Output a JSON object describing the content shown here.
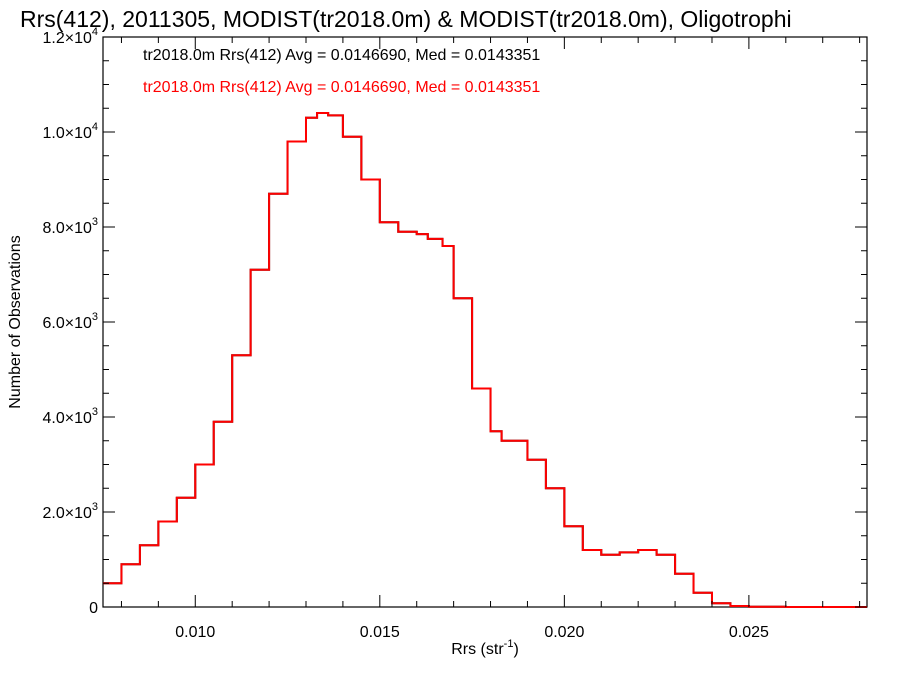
{
  "chart_data": {
    "type": "line",
    "title": "Rrs(412), 2011305, MODIST(tr2018.0m) & MODIST(tr2018.0m), Oligotrophi",
    "xlabel": "Rrs (str",
    "xlabel_sup": "-1",
    "xlabel_close": ")",
    "ylabel": "Number of Observations",
    "xlim": [
      0.0075,
      0.0282
    ],
    "ylim": [
      0,
      12000
    ],
    "x_ticks": [
      {
        "value": 0.01,
        "label": "0.010"
      },
      {
        "value": 0.015,
        "label": "0.015"
      },
      {
        "value": 0.02,
        "label": "0.020"
      },
      {
        "value": 0.025,
        "label": "0.025"
      }
    ],
    "y_ticks": [
      {
        "value": 0,
        "mant": "0",
        "exp": ""
      },
      {
        "value": 2000,
        "mant": "2.0×10",
        "exp": "3"
      },
      {
        "value": 4000,
        "mant": "4.0×10",
        "exp": "3"
      },
      {
        "value": 6000,
        "mant": "6.0×10",
        "exp": "3"
      },
      {
        "value": 8000,
        "mant": "8.0×10",
        "exp": "3"
      },
      {
        "value": 10000,
        "mant": "1.0×10",
        "exp": "4"
      },
      {
        "value": 12000,
        "mant": "1.2×10",
        "exp": "4"
      }
    ],
    "legend": [
      {
        "text": "tr2018.0m Rrs(412) Avg = 0.0146690, Med = 0.0143351",
        "color": "#000000"
      },
      {
        "text": "tr2018.0m Rrs(412) Avg = 0.0146690, Med = 0.0143351",
        "color": "#ff0000"
      }
    ],
    "legend_position": "top-left",
    "grid": false,
    "step": true,
    "series": [
      {
        "color": "#000000",
        "x": [
          0.0075,
          0.008,
          0.0085,
          0.009,
          0.0095,
          0.01,
          0.0105,
          0.011,
          0.0115,
          0.012,
          0.0125,
          0.013,
          0.0133,
          0.0136,
          0.014,
          0.0145,
          0.015,
          0.0155,
          0.016,
          0.0163,
          0.0167,
          0.017,
          0.0175,
          0.018,
          0.0183,
          0.0186,
          0.019,
          0.0195,
          0.02,
          0.0205,
          0.021,
          0.0215,
          0.022,
          0.0225,
          0.023,
          0.0235,
          0.024,
          0.0245,
          0.025,
          0.026,
          0.027,
          0.0282
        ],
        "y": [
          500,
          900,
          1300,
          1800,
          2300,
          3000,
          3900,
          5300,
          7100,
          8700,
          9800,
          10300,
          10400,
          10350,
          9900,
          9000,
          8100,
          7900,
          7850,
          7750,
          7600,
          6500,
          4600,
          3700,
          3500,
          3500,
          3100,
          2500,
          1700,
          1200,
          1100,
          1150,
          1200,
          1100,
          700,
          300,
          80,
          20,
          5,
          0,
          0,
          0
        ]
      },
      {
        "color": "#ff0000",
        "x": [
          0.0075,
          0.008,
          0.0085,
          0.009,
          0.0095,
          0.01,
          0.0105,
          0.011,
          0.0115,
          0.012,
          0.0125,
          0.013,
          0.0133,
          0.0136,
          0.014,
          0.0145,
          0.015,
          0.0155,
          0.016,
          0.0163,
          0.0167,
          0.017,
          0.0175,
          0.018,
          0.0183,
          0.0186,
          0.019,
          0.0195,
          0.02,
          0.0205,
          0.021,
          0.0215,
          0.022,
          0.0225,
          0.023,
          0.0235,
          0.024,
          0.0245,
          0.025,
          0.026,
          0.027,
          0.0282
        ],
        "y": [
          500,
          900,
          1300,
          1800,
          2300,
          3000,
          3900,
          5300,
          7100,
          8700,
          9800,
          10300,
          10400,
          10350,
          9900,
          9000,
          8100,
          7900,
          7850,
          7750,
          7600,
          6500,
          4600,
          3700,
          3500,
          3500,
          3100,
          2500,
          1700,
          1200,
          1100,
          1150,
          1200,
          1100,
          700,
          300,
          80,
          20,
          5,
          0,
          0,
          0
        ]
      }
    ]
  }
}
